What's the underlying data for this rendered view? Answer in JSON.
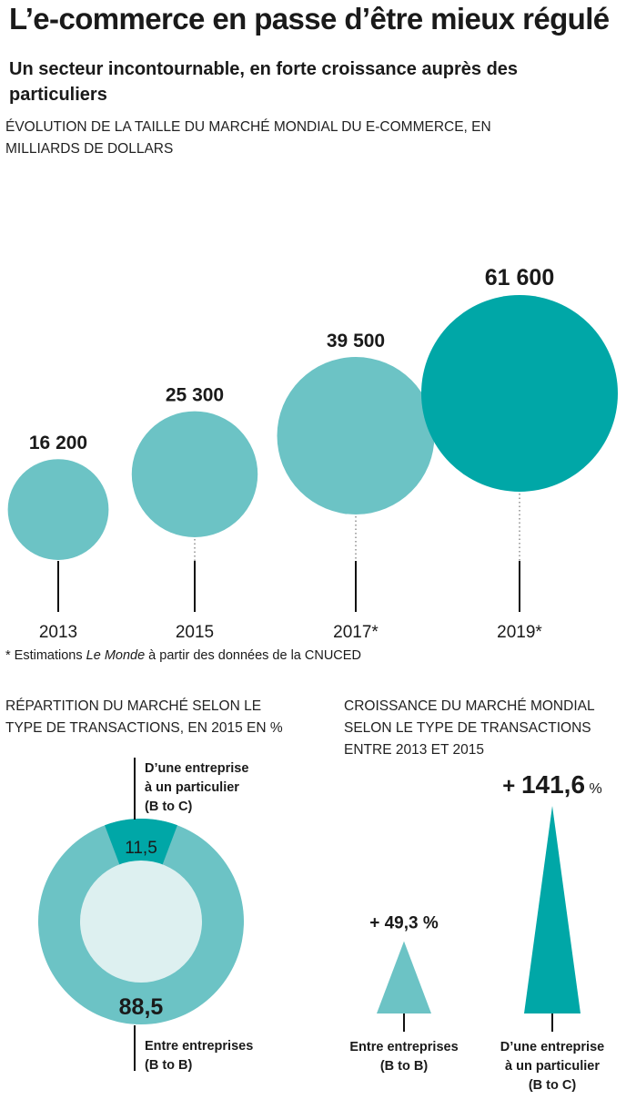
{
  "title": "L’e-commerce en passe d’être mieux régulé",
  "subtitle": "Un secteur incontournable, en forte croissance auprès des particuliers",
  "colors": {
    "teal_light": "#6cc3c5",
    "teal_dark": "#00a7a7",
    "pale": "#ddf0f0",
    "ink": "#1a1a1a"
  },
  "chart_data": [
    {
      "type": "bubble",
      "title": "ÉVOLUTION DE LA TAILLE DU MARCHÉ MONDIAL DU E-COMMERCE, EN MILLIARDS DE DOLLARS",
      "categories": [
        "2013",
        "2015",
        "2017*",
        "2019*"
      ],
      "values": [
        16200,
        25300,
        39500,
        61600
      ],
      "value_labels": [
        "16 200",
        "25 300",
        "39 500",
        "61 600"
      ],
      "highlight": "2019*",
      "note_prefix": "* Estimations ",
      "note_source": "Le Monde",
      "note_suffix": " à partir des données de la CNUCED"
    },
    {
      "type": "pie",
      "title": "RÉPARTITION DU MARCHÉ SELON LE TYPE DE TRANSACTIONS, EN 2015 EN %",
      "slices": [
        {
          "label": "D’une entreprise à un particulier (B to C)",
          "value": 11.5,
          "value_label": "11,5"
        },
        {
          "label": "Entre entreprises (B to B)",
          "value": 88.5,
          "value_label": "88,5"
        }
      ],
      "b2c_lines": [
        "D’une entreprise",
        "à un particulier",
        "(B to C)"
      ],
      "b2b_lines": [
        "Entre entreprises",
        "(B to B)"
      ]
    },
    {
      "type": "bar",
      "title": "CROISSANCE DU MARCHÉ MONDIAL SELON LE TYPE DE TRANSACTIONS ENTRE 2013 ET 2015",
      "categories": [
        "Entre entreprises (B to B)",
        "D’une entreprise à un particulier (B to C)"
      ],
      "values": [
        49.3,
        141.6
      ],
      "labels": [
        {
          "sign": "+ ",
          "number": "49,3",
          "unit": " %"
        },
        {
          "sign": "+ ",
          "number": "141,6",
          "unit": " %"
        }
      ],
      "b2b_lines": [
        "Entre entreprises",
        "(B to B)"
      ],
      "b2c_lines": [
        "D’une entreprise",
        "à un particulier",
        "(B to C)"
      ]
    }
  ]
}
